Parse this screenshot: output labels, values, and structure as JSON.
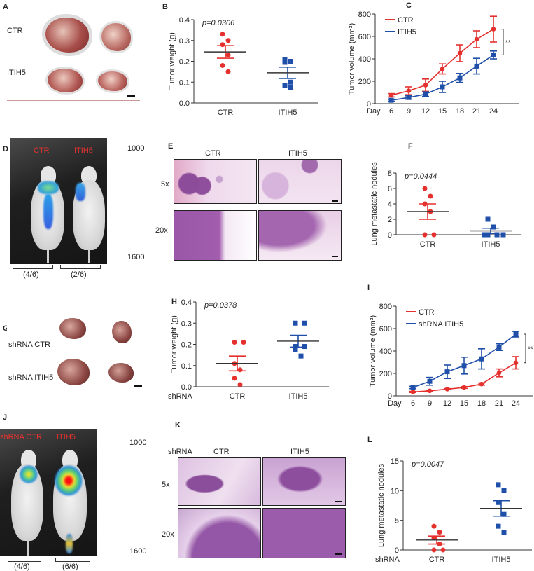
{
  "panels": {
    "A": {
      "letter": "A",
      "labels": [
        "CTR",
        "ITIH5"
      ]
    },
    "B": {
      "letter": "B"
    },
    "C": {
      "letter": "C"
    },
    "D": {
      "letter": "D",
      "image_labels": [
        "CTR",
        "ITIH5"
      ],
      "scale_max": "1000",
      "scale_min": "1600",
      "ratios": [
        "(4/6)",
        "(2/6)"
      ]
    },
    "E": {
      "letter": "E",
      "columns": [
        "CTR",
        "ITIH5"
      ],
      "rows": [
        "5x",
        "20x"
      ]
    },
    "F": {
      "letter": "F"
    },
    "G": {
      "letter": "G",
      "labels": [
        "shRNA CTR",
        "shRNA  ITIH5"
      ]
    },
    "H": {
      "letter": "H"
    },
    "I": {
      "letter": "I"
    },
    "J": {
      "letter": "J",
      "image_labels": [
        "shRNA CTR",
        "ITIH5"
      ],
      "scale_max": "1000",
      "scale_min": "1600",
      "ratios": [
        "(4/6)",
        "(6/6)"
      ]
    },
    "K": {
      "letter": "K",
      "prefix": "shRNA",
      "columns": [
        "CTR",
        "ITIH5"
      ],
      "rows": [
        "5x",
        "20x"
      ]
    },
    "L": {
      "letter": "L"
    }
  },
  "colors": {
    "ctr": "#e5312e",
    "itih5": "#1f4fa8",
    "mean": "#333333"
  },
  "chart_data": [
    {
      "id": "B",
      "type": "scatter",
      "ylabel": "Tumor weight (g)",
      "annotation": "p=0.0306",
      "ylim": [
        0,
        0.4
      ],
      "yticks": [
        "0.0",
        "0.1",
        "0.2",
        "0.3",
        "0.4"
      ],
      "ytick_values": [
        0,
        0.1,
        0.2,
        0.3,
        0.4
      ],
      "xprefix": "",
      "categories": [
        "CTR",
        "ITIH5"
      ],
      "series": [
        {
          "name": "CTR",
          "marker": "circle",
          "values": [
            0.33,
            0.3,
            0.28,
            0.23,
            0.18,
            0.15
          ],
          "mean": 0.245,
          "sem": 0.03
        },
        {
          "name": "ITIH5",
          "marker": "square",
          "values": [
            0.21,
            0.2,
            0.195,
            0.1,
            0.085,
            0.075
          ],
          "mean": 0.145,
          "sem": 0.027
        }
      ]
    },
    {
      "id": "C",
      "type": "line",
      "ylabel": "Tumor volume (mm³)",
      "xlabel": "Day",
      "ylim": [
        0,
        800
      ],
      "yticks": [
        "0",
        "200",
        "400",
        "600",
        "800"
      ],
      "ytick_values": [
        0,
        200,
        400,
        600,
        800
      ],
      "x": [
        6,
        9,
        12,
        15,
        18,
        21,
        24
      ],
      "xticks": [
        "6",
        "9",
        "12",
        "15",
        "18",
        "21",
        "24"
      ],
      "significance": "**",
      "legend": "top-left",
      "series": [
        {
          "name": "CTR",
          "marker": "circle",
          "values": [
            75,
            115,
            165,
            310,
            450,
            575,
            665
          ],
          "errors": [
            15,
            35,
            55,
            45,
            75,
            75,
            115
          ]
        },
        {
          "name": "ITIH5",
          "marker": "square",
          "values": [
            30,
            55,
            85,
            150,
            230,
            335,
            435
          ],
          "errors": [
            10,
            15,
            20,
            50,
            40,
            70,
            35
          ]
        }
      ]
    },
    {
      "id": "F",
      "type": "scatter",
      "ylabel": "Lung metastatic nodules",
      "annotation": "p=0.0444",
      "ylim": [
        0,
        8
      ],
      "yticks": [
        "0",
        "2",
        "4",
        "6",
        "8"
      ],
      "ytick_values": [
        0,
        2,
        4,
        6,
        8
      ],
      "xprefix": "",
      "categories": [
        "CTR",
        "ITIH5"
      ],
      "series": [
        {
          "name": "CTR",
          "marker": "circle",
          "values": [
            6,
            5,
            4,
            3,
            0,
            0
          ],
          "mean": 3,
          "sem": 1
        },
        {
          "name": "ITIH5",
          "marker": "square",
          "values": [
            2,
            1,
            0,
            0,
            0,
            0
          ],
          "mean": 0.5,
          "sem": 0.34
        }
      ]
    },
    {
      "id": "H",
      "type": "scatter",
      "ylabel": "Tumor weight (g)",
      "annotation": "p=0.0378",
      "ylim": [
        0,
        0.4
      ],
      "yticks": [
        "0.0",
        "0.1",
        "0.2",
        "0.3",
        "0.4"
      ],
      "ytick_values": [
        0,
        0.1,
        0.2,
        0.3,
        0.4
      ],
      "xprefix": "shRNA",
      "categories": [
        "CTR",
        "ITIH5"
      ],
      "series": [
        {
          "name": "CTR",
          "marker": "circle",
          "values": [
            0.21,
            0.21,
            0.11,
            0.08,
            0.04,
            0.01
          ],
          "mean": 0.11,
          "sem": 0.035
        },
        {
          "name": "ITIH5",
          "marker": "square",
          "values": [
            0.3,
            0.3,
            0.19,
            0.19,
            0.175,
            0.145
          ],
          "mean": 0.215,
          "sem": 0.028
        }
      ]
    },
    {
      "id": "I",
      "type": "line",
      "ylabel": "Tumor volume (mm³)",
      "xlabel": "Day",
      "ylim": [
        0,
        800
      ],
      "yticks": [
        "0",
        "200",
        "400",
        "600",
        "800"
      ],
      "ytick_values": [
        0,
        200,
        400,
        600,
        800
      ],
      "x": [
        6,
        9,
        12,
        15,
        18,
        21,
        24
      ],
      "xticks": [
        "6",
        "9",
        "12",
        "15",
        "18",
        "21",
        "24"
      ],
      "significance": "**",
      "legend": "top-left",
      "series": [
        {
          "name": "CTR",
          "marker": "circle",
          "values": [
            35,
            45,
            60,
            75,
            105,
            205,
            295
          ],
          "errors": [
            5,
            5,
            5,
            8,
            10,
            35,
            55
          ]
        },
        {
          "name": "shRNA ITIH5",
          "marker": "square",
          "values": [
            75,
            130,
            215,
            270,
            330,
            435,
            550
          ],
          "errors": [
            10,
            35,
            60,
            75,
            90,
            30,
            25
          ]
        }
      ]
    },
    {
      "id": "L",
      "type": "scatter",
      "ylabel": "Lung metastatic nodules",
      "annotation": "p=0.0047",
      "ylim": [
        0,
        15
      ],
      "yticks": [
        "0",
        "5",
        "10",
        "15"
      ],
      "ytick_values": [
        0,
        5,
        10,
        15
      ],
      "xprefix": "shRNA",
      "categories": [
        "CTR",
        "ITIH5"
      ],
      "series": [
        {
          "name": "CTR",
          "marker": "circle",
          "values": [
            4,
            3,
            2,
            1,
            0,
            0
          ],
          "mean": 1.67,
          "sem": 0.67
        },
        {
          "name": "ITIH5",
          "marker": "square",
          "values": [
            11,
            10,
            8,
            6,
            4,
            3
          ],
          "mean": 7,
          "sem": 1.3
        }
      ]
    }
  ]
}
